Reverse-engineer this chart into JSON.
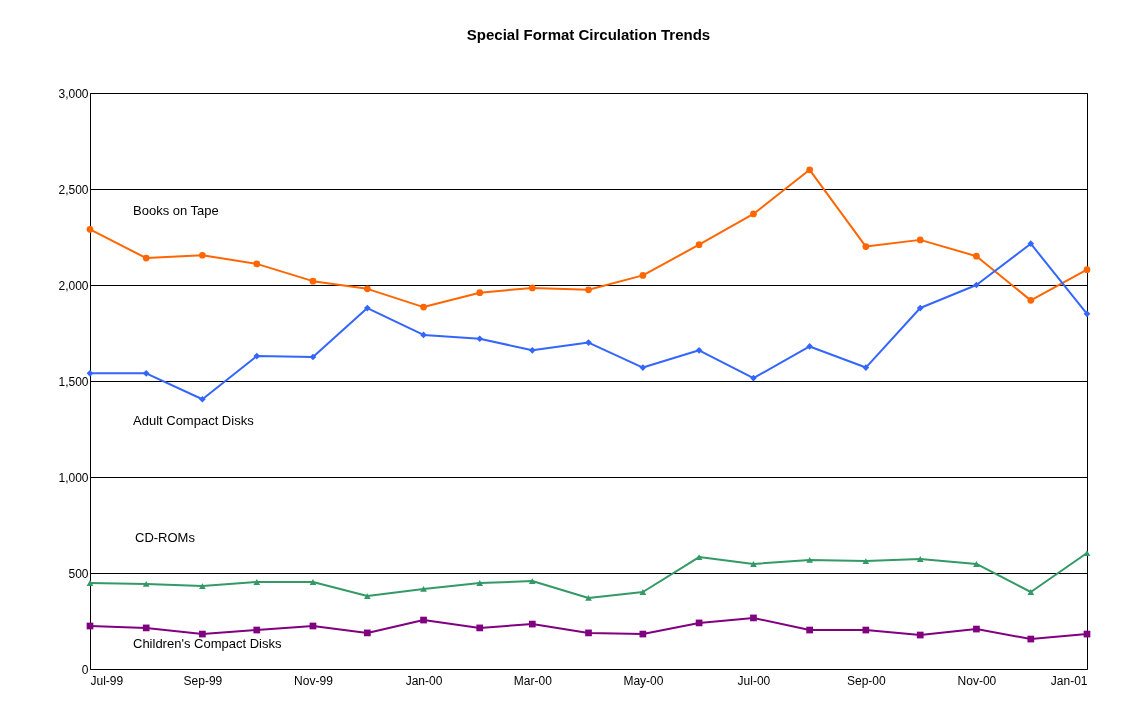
{
  "chart_data": {
    "type": "line",
    "title": "Special Format Circulation Trends",
    "x": [
      "1999-07",
      "1999-08",
      "1999-09",
      "1999-10",
      "1999-11",
      "1999-12",
      "2000-01",
      "2000-02",
      "2000-03",
      "2000-04",
      "2000-05",
      "2000-06",
      "2000-07",
      "2000-08",
      "2000-09",
      "2000-10",
      "2000-11",
      "2000-12",
      "2001-01"
    ],
    "xlim": [
      "1999-07",
      "2001-01"
    ],
    "xticks": [
      {
        "value": "1999-07",
        "label": "Jul-99"
      },
      {
        "value": "1999-09",
        "label": "Sep-99"
      },
      {
        "value": "1999-11",
        "label": "Nov-99"
      },
      {
        "value": "2000-01",
        "label": "Jan-00"
      },
      {
        "value": "2000-03",
        "label": "Mar-00"
      },
      {
        "value": "2000-05",
        "label": "May-00"
      },
      {
        "value": "2000-07",
        "label": "Jul-00"
      },
      {
        "value": "2000-09",
        "label": "Sep-00"
      },
      {
        "value": "2000-11",
        "label": "Nov-00"
      },
      {
        "value": "2001-01",
        "label": "Jan-01"
      }
    ],
    "ylim": [
      0,
      3000
    ],
    "yticks": [
      {
        "value": 0,
        "label": "0"
      },
      {
        "value": 500,
        "label": "500"
      },
      {
        "value": 1000,
        "label": "1,000"
      },
      {
        "value": 1500,
        "label": "1,500"
      },
      {
        "value": 2000,
        "label": "2,000"
      },
      {
        "value": 2500,
        "label": "2,500"
      },
      {
        "value": 3000,
        "label": "3,000"
      }
    ],
    "grid": "y",
    "legend": false,
    "line_style": "solid",
    "series": [
      {
        "name": "Books on Tape",
        "color": "#ff6600",
        "marker": "circle",
        "values": [
          2290,
          2140,
          2155,
          2110,
          2020,
          1980,
          1885,
          1960,
          1985,
          1975,
          2050,
          2210,
          2370,
          2600,
          2200,
          2235,
          2150,
          1920,
          2080
        ]
      },
      {
        "name": "Adult Compact Disks",
        "color": "#3366ff",
        "marker": "diamond",
        "values": [
          1540,
          1540,
          1405,
          1630,
          1625,
          1880,
          1740,
          1720,
          1660,
          1700,
          1570,
          1660,
          1515,
          1680,
          1570,
          1880,
          2000,
          2215,
          1850
        ]
      },
      {
        "name": "CD-ROMs",
        "color": "#339966",
        "marker": "triangle",
        "values": [
          448,
          443,
          432,
          453,
          453,
          380,
          417,
          448,
          458,
          370,
          401,
          583,
          547,
          568,
          562,
          573,
          547,
          401,
          604
        ]
      },
      {
        "name": "Children's Compact Disks",
        "color": "#800080",
        "marker": "square",
        "values": [
          224,
          214,
          182,
          203,
          224,
          188,
          255,
          214,
          234,
          188,
          182,
          240,
          266,
          203,
          203,
          177,
          208,
          156,
          182
        ]
      }
    ]
  }
}
